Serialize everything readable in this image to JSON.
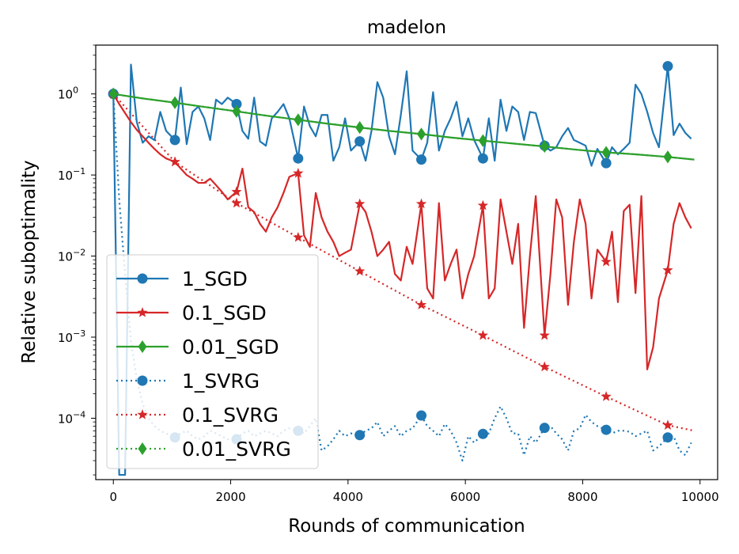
{
  "chart_data": {
    "type": "line",
    "title": "madelon",
    "xlabel": "Rounds of communication",
    "ylabel": "Relative suboptimality",
    "xlim": [
      -300,
      10300
    ],
    "ylim": [
      1.75e-05,
      4.0
    ],
    "yscale": "log",
    "x_ticks": [
      0,
      2000,
      4000,
      6000,
      8000,
      10000
    ],
    "x_tick_labels": [
      "0",
      "2000",
      "4000",
      "6000",
      "8000",
      "10000"
    ],
    "y_ticks": [
      0.0001,
      0.001,
      0.01,
      0.1,
      1
    ],
    "y_tick_labels": [
      {
        "base": "10",
        "exp": "−4"
      },
      {
        "base": "10",
        "exp": "−3"
      },
      {
        "base": "10",
        "exp": "−2"
      },
      {
        "base": "10",
        "exp": "−1"
      },
      {
        "base": "10",
        "exp": "0"
      }
    ],
    "legend_position": "lower-left",
    "colors": {
      "blue": "#1f77b4",
      "red": "#d62728",
      "green": "#2ca02c"
    },
    "series": [
      {
        "name": "1_SGD",
        "color": "#1f77b4",
        "style": "solid",
        "marker": "circle",
        "x": [
          0,
          100,
          200,
          300,
          400,
          500,
          600,
          700,
          800,
          900,
          1050,
          1150,
          1250,
          1350,
          1450,
          1550,
          1650,
          1750,
          1850,
          1950,
          2100,
          2200,
          2300,
          2400,
          2500,
          2600,
          2700,
          2800,
          2900,
          3000,
          3150,
          3250,
          3350,
          3450,
          3550,
          3650,
          3750,
          3850,
          3950,
          4050,
          4200,
          4300,
          4400,
          4500,
          4600,
          4700,
          4800,
          4900,
          5000,
          5100,
          5250,
          5350,
          5450,
          5550,
          5650,
          5750,
          5850,
          5950,
          6050,
          6150,
          6300,
          6400,
          6500,
          6600,
          6700,
          6800,
          6900,
          7000,
          7100,
          7200,
          7350,
          7450,
          7550,
          7650,
          7750,
          7850,
          7950,
          8050,
          8150,
          8250,
          8400,
          8500,
          8600,
          8700,
          8800,
          8900,
          9000,
          9100,
          9200,
          9300,
          9450,
          9550,
          9650,
          9750,
          9850
        ],
        "y": [
          1.0,
          2e-05,
          2e-05,
          2.3,
          0.45,
          0.25,
          0.3,
          0.27,
          0.6,
          0.35,
          0.27,
          1.2,
          0.24,
          0.6,
          0.7,
          0.5,
          0.27,
          0.85,
          0.75,
          0.9,
          0.75,
          0.35,
          0.28,
          0.9,
          0.26,
          0.23,
          0.5,
          0.6,
          0.75,
          0.5,
          0.16,
          0.7,
          0.4,
          0.3,
          0.55,
          0.55,
          0.15,
          0.22,
          0.5,
          0.2,
          0.26,
          0.15,
          0.35,
          1.4,
          0.9,
          0.3,
          0.18,
          0.55,
          1.9,
          0.2,
          0.155,
          0.25,
          1.05,
          0.2,
          0.35,
          0.5,
          0.8,
          0.3,
          0.5,
          0.27,
          0.16,
          0.5,
          0.15,
          0.85,
          0.35,
          0.7,
          0.6,
          0.27,
          0.6,
          0.58,
          0.23,
          0.2,
          0.22,
          0.3,
          0.38,
          0.27,
          0.25,
          0.23,
          0.13,
          0.21,
          0.14,
          0.22,
          0.18,
          0.21,
          0.25,
          1.3,
          1.0,
          0.6,
          0.33,
          0.22,
          2.2,
          0.31,
          0.43,
          0.33,
          0.28
        ],
        "marker_indices": [
          0,
          10,
          20,
          30,
          40,
          50,
          60,
          70,
          80,
          90
        ]
      },
      {
        "name": "0.1_SGD",
        "color": "#d62728",
        "style": "solid",
        "marker": "star",
        "x": [
          0,
          100,
          200,
          300,
          400,
          500,
          600,
          700,
          800,
          900,
          1050,
          1150,
          1250,
          1350,
          1450,
          1550,
          1650,
          1750,
          1850,
          1950,
          2100,
          2200,
          2300,
          2400,
          2500,
          2600,
          2700,
          2800,
          2900,
          3000,
          3150,
          3250,
          3350,
          3450,
          3550,
          3650,
          3750,
          3850,
          3950,
          4050,
          4200,
          4300,
          4400,
          4500,
          4600,
          4700,
          4800,
          4900,
          5000,
          5100,
          5250,
          5350,
          5450,
          5550,
          5650,
          5750,
          5850,
          5950,
          6050,
          6150,
          6300,
          6400,
          6500,
          6600,
          6700,
          6800,
          6900,
          7000,
          7100,
          7200,
          7350,
          7450,
          7550,
          7650,
          7750,
          7850,
          7950,
          8050,
          8150,
          8250,
          8400,
          8500,
          8600,
          8700,
          8800,
          8900,
          9000,
          9100,
          9200,
          9300,
          9450,
          9550,
          9650,
          9750,
          9850
        ],
        "y": [
          1.0,
          0.75,
          0.58,
          0.45,
          0.36,
          0.3,
          0.25,
          0.21,
          0.18,
          0.16,
          0.145,
          0.12,
          0.1,
          0.09,
          0.08,
          0.08,
          0.09,
          0.075,
          0.062,
          0.05,
          0.062,
          0.12,
          0.04,
          0.035,
          0.025,
          0.02,
          0.03,
          0.04,
          0.06,
          0.095,
          0.105,
          0.018,
          0.013,
          0.06,
          0.03,
          0.02,
          0.015,
          0.01,
          0.011,
          0.012,
          0.044,
          0.035,
          0.02,
          0.01,
          0.012,
          0.015,
          0.006,
          0.005,
          0.013,
          0.008,
          0.044,
          0.004,
          0.003,
          0.045,
          0.005,
          0.008,
          0.012,
          0.003,
          0.006,
          0.01,
          0.042,
          0.003,
          0.004,
          0.05,
          0.02,
          0.008,
          0.025,
          0.0013,
          0.01,
          0.055,
          0.00105,
          0.006,
          0.05,
          0.03,
          0.0025,
          0.015,
          0.05,
          0.025,
          0.003,
          0.012,
          0.0085,
          0.02,
          0.0027,
          0.036,
          0.043,
          0.0035,
          0.055,
          0.0004,
          0.00075,
          0.003,
          0.0067,
          0.025,
          0.045,
          0.03,
          0.022
        ],
        "marker_indices": [
          0,
          10,
          20,
          30,
          40,
          50,
          60,
          70,
          80,
          90
        ]
      },
      {
        "name": "0.01_SGD",
        "color": "#2ca02c",
        "style": "solid",
        "marker": "diamond",
        "x": [
          0,
          500,
          1050,
          1500,
          2100,
          2600,
          3150,
          3650,
          4200,
          4700,
          5250,
          5750,
          6300,
          6800,
          7350,
          7900,
          8400,
          8900,
          9450,
          9900
        ],
        "y": [
          1.0,
          0.88,
          0.78,
          0.7,
          0.61,
          0.54,
          0.48,
          0.43,
          0.385,
          0.35,
          0.32,
          0.29,
          0.265,
          0.245,
          0.225,
          0.205,
          0.19,
          0.18,
          0.167,
          0.155
        ],
        "marker_indices": [
          0,
          2,
          4,
          6,
          8,
          10,
          12,
          14,
          16,
          18
        ]
      },
      {
        "name": "1_SVRG",
        "color": "#1f77b4",
        "style": "dotted",
        "marker": "circle",
        "x": [
          0,
          100,
          200,
          300,
          400,
          500,
          600,
          700,
          800,
          900,
          1050,
          1150,
          1250,
          1350,
          1450,
          1550,
          1650,
          1750,
          1850,
          1950,
          2100,
          2200,
          2300,
          2400,
          2500,
          2600,
          2700,
          2800,
          2900,
          3000,
          3150,
          3250,
          3350,
          3450,
          3550,
          3650,
          3750,
          3850,
          3950,
          4050,
          4200,
          4300,
          4400,
          4500,
          4600,
          4700,
          4800,
          4900,
          5000,
          5100,
          5250,
          5350,
          5450,
          5550,
          5650,
          5750,
          5850,
          5950,
          6050,
          6150,
          6300,
          6400,
          6500,
          6600,
          6700,
          6800,
          6900,
          7000,
          7100,
          7200,
          7350,
          7450,
          7550,
          7650,
          7750,
          7850,
          7950,
          8050,
          8150,
          8250,
          8400,
          8500,
          8600,
          8700,
          8800,
          8900,
          9000,
          9100,
          9200,
          9300,
          9450,
          9550,
          9650,
          9750,
          9850
        ],
        "y": [
          1.0,
          0.05,
          0.006,
          0.0009,
          0.0003,
          0.00015,
          0.0001,
          8e-05,
          7e-05,
          6.5e-05,
          5.8e-05,
          6.5e-05,
          7e-05,
          6e-05,
          5.5e-05,
          6e-05,
          7e-05,
          6.5e-05,
          6e-05,
          5.5e-05,
          5.5e-05,
          6.5e-05,
          7e-05,
          6e-05,
          6.5e-05,
          7e-05,
          6.5e-05,
          6e-05,
          7e-05,
          7.5e-05,
          7e-05,
          6.5e-05,
          8e-05,
          0.0001,
          4e-05,
          4.5e-05,
          5.5e-05,
          7e-05,
          6e-05,
          6.5e-05,
          6.2e-05,
          7e-05,
          7.5e-05,
          9e-05,
          6e-05,
          7e-05,
          8e-05,
          6e-05,
          7e-05,
          7.5e-05,
          0.000108,
          8e-05,
          7e-05,
          6e-05,
          8.5e-05,
          7e-05,
          5e-05,
          3e-05,
          6e-05,
          5e-05,
          6.4e-05,
          6.5e-05,
          0.0001,
          0.00014,
          0.0001,
          6.5e-05,
          6.5e-05,
          3.5e-05,
          6e-05,
          5e-05,
          7.6e-05,
          8e-05,
          6.5e-05,
          5.5e-05,
          4e-05,
          7e-05,
          7.5e-05,
          0.00011,
          9e-05,
          8e-05,
          7.2e-05,
          6.5e-05,
          7e-05,
          7e-05,
          6.8e-05,
          6e-05,
          6.5e-05,
          7e-05,
          4e-05,
          4.5e-05,
          5.8e-05,
          6e-05,
          4e-05,
          3.5e-05,
          5e-05
        ],
        "marker_indices": [
          0,
          10,
          20,
          30,
          40,
          50,
          60,
          70,
          80,
          90
        ]
      },
      {
        "name": "0.1_SVRG",
        "color": "#d62728",
        "style": "dotted",
        "marker": "star",
        "x": [
          0,
          1050,
          2100,
          3150,
          4200,
          5250,
          6300,
          7350,
          8400,
          9450,
          9900
        ],
        "y": [
          1.0,
          0.145,
          0.045,
          0.017,
          0.0065,
          0.0025,
          0.00105,
          0.00043,
          0.000185,
          8.2e-05,
          7e-05
        ],
        "marker_indices": [
          0,
          1,
          2,
          3,
          4,
          5,
          6,
          7,
          8,
          9
        ]
      },
      {
        "name": "0.01_SVRG",
        "color": "#2ca02c",
        "style": "dotted",
        "marker": "diamond",
        "x": [
          0,
          500,
          1050,
          1500,
          2100,
          2600,
          3150,
          3650,
          4200,
          4700,
          5250,
          5750,
          6300,
          6800,
          7350,
          7900,
          8400,
          8900,
          9450,
          9900
        ],
        "y": [
          1.0,
          0.88,
          0.78,
          0.7,
          0.61,
          0.54,
          0.48,
          0.43,
          0.385,
          0.35,
          0.32,
          0.29,
          0.265,
          0.245,
          0.225,
          0.205,
          0.19,
          0.18,
          0.167,
          0.155
        ],
        "marker_indices": [
          0,
          2,
          4,
          6,
          8,
          10,
          12,
          14,
          16,
          18
        ]
      }
    ]
  }
}
